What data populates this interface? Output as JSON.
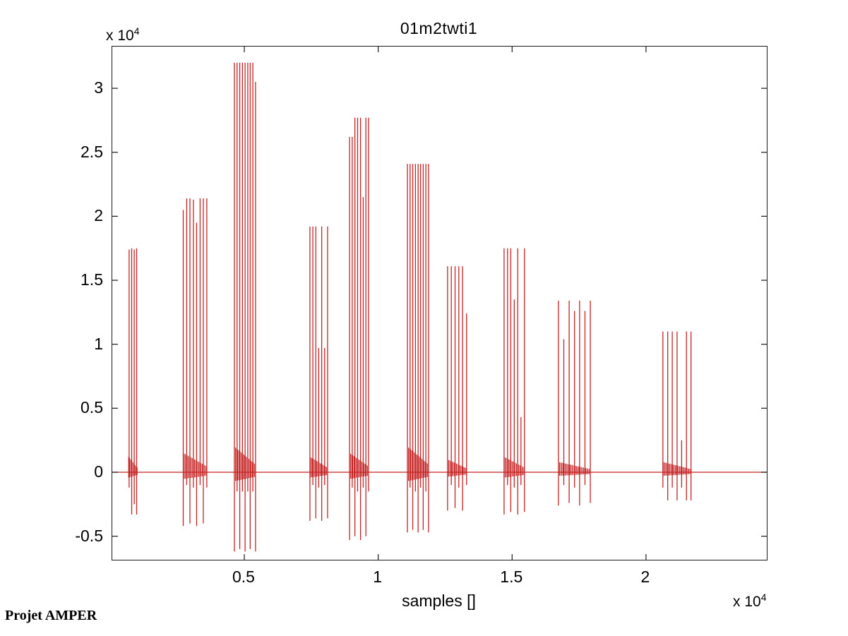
{
  "figure": {
    "title": "01m2twti1",
    "xlabel": "samples []",
    "y_multiplier_prefix": "x 10",
    "y_multiplier_exp": "4",
    "x_multiplier_prefix": "x 10",
    "x_multiplier_exp": "4",
    "watermark": "Projet AMPER"
  },
  "chart_data": {
    "type": "line",
    "title": "01m2twti1",
    "xlabel": "samples []",
    "ylabel": "",
    "x_units": "samples, value shown x 10^4",
    "y_units": "amplitude, value shown x 10^4",
    "line_color": "#c52323",
    "axis_color": "#1a1a1a",
    "grid": false,
    "legend": "none",
    "xlim": [
      0.007,
      2.451
    ],
    "ylim": [
      -0.684,
      3.326
    ],
    "x_ticks": [
      0.5,
      1,
      1.5,
      2
    ],
    "x_tick_labels": [
      "0.5",
      "1",
      "1.5",
      "2"
    ],
    "y_ticks": [
      3,
      2.5,
      2,
      1.5,
      1,
      0.5,
      0,
      -0.5
    ],
    "y_tick_labels": [
      "3",
      "2.5",
      "2",
      "1.5",
      "1",
      "0.5",
      "0",
      "-0.5"
    ],
    "zero_line": 0,
    "description": "Speech-like waveform: ten bursts of tall narrow spikes above a flat zero baseline, each burst with a small decaying oscillation packet around zero and downward spikes below the baseline. Units are 10^4 on both axes.",
    "bursts": [
      {
        "x0": 0.068,
        "x1": 0.1,
        "buzz": 0.12,
        "spikes": [
          [
            0.07,
            1.74,
            -0.12
          ],
          [
            0.0795,
            1.75,
            -0.33
          ],
          [
            0.089,
            1.74,
            -0.25
          ],
          [
            0.098,
            1.75,
            -0.33
          ]
        ]
      },
      {
        "x0": 0.272,
        "x1": 0.36,
        "buzz": 0.15,
        "spikes": [
          [
            0.272,
            2.05,
            -0.42
          ],
          [
            0.285,
            2.14,
            -0.1
          ],
          [
            0.297,
            2.14,
            -0.4
          ],
          [
            0.31,
            2.13,
            -0.12
          ],
          [
            0.322,
            1.95,
            -0.42
          ],
          [
            0.335,
            2.14,
            -0.1
          ],
          [
            0.347,
            2.14,
            -0.4
          ],
          [
            0.36,
            2.14,
            -0.12
          ]
        ]
      },
      {
        "x0": 0.463,
        "x1": 0.542,
        "buzz": 0.2,
        "spikes": [
          [
            0.463,
            3.2,
            -0.62
          ],
          [
            0.473,
            3.2,
            -0.15
          ],
          [
            0.483,
            3.2,
            -0.6
          ],
          [
            0.493,
            3.2,
            -0.15
          ],
          [
            0.503,
            3.2,
            -0.62
          ],
          [
            0.513,
            3.2,
            -0.15
          ],
          [
            0.522,
            3.2,
            -0.6
          ],
          [
            0.532,
            3.2,
            -0.15
          ],
          [
            0.542,
            3.05,
            -0.62
          ]
        ]
      },
      {
        "x0": 0.745,
        "x1": 0.811,
        "buzz": 0.12,
        "spikes": [
          [
            0.745,
            1.92,
            -0.38
          ],
          [
            0.756,
            1.92,
            -0.1
          ],
          [
            0.767,
            1.92,
            -0.36
          ],
          [
            0.778,
            0.97,
            -0.12
          ],
          [
            0.789,
            1.92,
            -0.38
          ],
          [
            0.8,
            0.97,
            -0.1
          ],
          [
            0.811,
            1.92,
            -0.36
          ]
        ]
      },
      {
        "x0": 0.893,
        "x1": 0.964,
        "buzz": 0.15,
        "spikes": [
          [
            0.893,
            2.62,
            -0.53
          ],
          [
            0.903,
            2.62,
            -0.12
          ],
          [
            0.913,
            2.77,
            -0.5
          ],
          [
            0.923,
            2.77,
            -0.15
          ],
          [
            0.934,
            2.77,
            -0.53
          ],
          [
            0.944,
            2.15,
            -0.12
          ],
          [
            0.954,
            2.77,
            -0.5
          ],
          [
            0.964,
            2.77,
            -0.15
          ]
        ]
      },
      {
        "x0": 1.109,
        "x1": 1.188,
        "buzz": 0.2,
        "spikes": [
          [
            1.109,
            2.41,
            -0.47
          ],
          [
            1.119,
            2.41,
            -0.12
          ],
          [
            1.129,
            2.41,
            -0.45
          ],
          [
            1.139,
            2.41,
            -0.15
          ],
          [
            1.149,
            2.41,
            -0.47
          ],
          [
            1.158,
            2.41,
            -0.12
          ],
          [
            1.168,
            2.41,
            -0.45
          ],
          [
            1.178,
            2.41,
            -0.15
          ],
          [
            1.188,
            2.41,
            -0.47
          ]
        ]
      },
      {
        "x0": 1.259,
        "x1": 1.33,
        "buzz": 0.1,
        "spikes": [
          [
            1.259,
            1.61,
            -0.3
          ],
          [
            1.273,
            1.61,
            -0.1
          ],
          [
            1.287,
            1.61,
            -0.28
          ],
          [
            1.301,
            1.61,
            -0.12
          ],
          [
            1.315,
            1.61,
            -0.3
          ],
          [
            1.33,
            1.24,
            -0.1
          ]
        ]
      },
      {
        "x0": 1.47,
        "x1": 1.546,
        "buzz": 0.12,
        "spikes": [
          [
            1.47,
            1.75,
            -0.33
          ],
          [
            1.483,
            1.75,
            -0.1
          ],
          [
            1.495,
            1.75,
            -0.31
          ],
          [
            1.508,
            1.35,
            -0.12
          ],
          [
            1.521,
            1.75,
            -0.33
          ],
          [
            1.533,
            0.43,
            -0.1
          ],
          [
            1.546,
            1.75,
            -0.31
          ]
        ]
      },
      {
        "x0": 1.673,
        "x1": 1.792,
        "buzz": 0.08,
        "spikes": [
          [
            1.673,
            1.34,
            -0.26
          ],
          [
            1.693,
            1.04,
            -0.1
          ],
          [
            1.713,
            1.34,
            -0.24
          ],
          [
            1.733,
            1.26,
            -0.12
          ],
          [
            1.752,
            1.34,
            -0.26
          ],
          [
            1.772,
            1.26,
            -0.1
          ],
          [
            1.792,
            1.34,
            -0.24
          ]
        ]
      },
      {
        "x0": 2.063,
        "x1": 2.168,
        "buzz": 0.08,
        "spikes": [
          [
            2.063,
            1.1,
            -0.12
          ],
          [
            2.081,
            1.1,
            -0.22
          ],
          [
            2.098,
            1.1,
            -0.12
          ],
          [
            2.116,
            1.1,
            -0.22
          ],
          [
            2.133,
            0.25,
            -0.12
          ],
          [
            2.151,
            1.1,
            -0.22
          ],
          [
            2.168,
            1.1,
            -0.22
          ]
        ]
      }
    ]
  }
}
